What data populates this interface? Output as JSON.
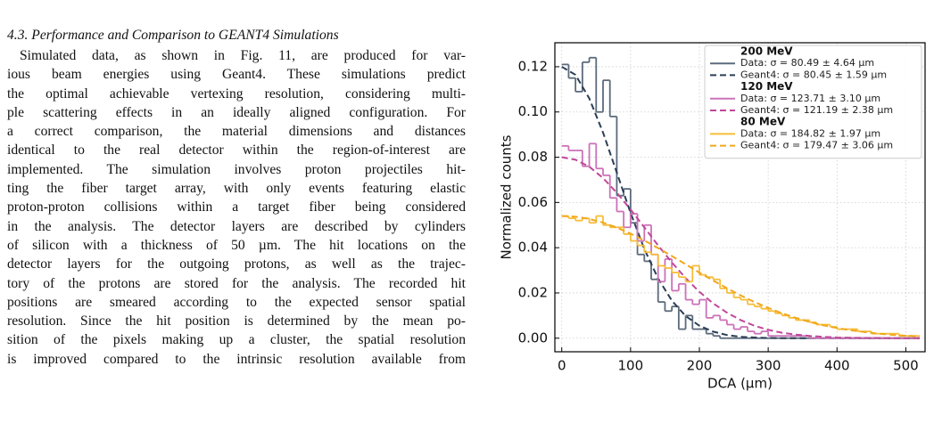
{
  "section": {
    "heading": "4.3. Performance and Comparison to GEANT4 Simulations",
    "lines": [
      "Simulated data, as shown in Fig. 11, are produced for var-",
      "ious beam energies using Geant4. These simulations predict",
      "the optimal achievable vertexing resolution, considering multi-",
      "ple scattering effects in an ideally aligned configuration. For",
      "a correct comparison, the material dimensions and distances",
      "identical to the real detector within the region-of-interest are",
      "implemented. The simulation involves proton projectiles hit-",
      "ting the fiber target array, with only events featuring elastic",
      "proton-proton collisions within a target fiber being considered",
      "in the analysis. The detector layers are described by cylinders",
      "of silicon with a thickness of 50 µm. The hit locations on the",
      "detector layers for the outgoing protons, as well as the trajec-",
      "tory of the protons are stored for the analysis. The recorded hit",
      "positions are smeared according to the expected sensor spatial",
      "resolution. Since the hit position is determined by the mean po-",
      "sition of the pixels making up a cluster, the spatial resolution",
      "is improved compared to the intrinsic resolution available from"
    ]
  },
  "chart_data": {
    "type": "histogram",
    "x_label": "DCA (µm)",
    "y_label": "Normalized counts",
    "xlim": [
      -10,
      528
    ],
    "ylim": [
      -0.006,
      0.1306
    ],
    "xticks": [
      0,
      100,
      200,
      300,
      400,
      500
    ],
    "yticks": [
      {
        "value": 0,
        "label": "0.00"
      },
      {
        "value": 0.02,
        "label": "0.02"
      },
      {
        "value": 0.04,
        "label": "0.04"
      },
      {
        "value": 0.06,
        "label": "0.06"
      },
      {
        "value": 0.08,
        "label": "0.08"
      },
      {
        "value": 0.1,
        "label": "0.10"
      },
      {
        "value": 0.12,
        "label": "0.12"
      }
    ],
    "grid": true,
    "legend": "upper right",
    "bins": [
      0,
      10,
      20,
      30,
      40,
      50,
      60,
      70,
      80,
      90,
      100,
      110,
      120,
      130,
      140,
      150,
      160,
      170,
      180,
      190,
      200,
      210,
      220,
      230,
      240,
      250,
      260,
      270,
      280,
      290,
      300,
      310,
      320,
      330,
      340,
      350,
      360,
      370,
      380,
      390,
      400,
      410,
      420,
      430,
      440,
      450,
      460,
      470,
      480,
      490,
      500,
      510,
      520
    ],
    "curve_x": [
      0,
      20,
      40,
      60,
      80,
      100,
      120,
      140,
      160,
      180,
      200,
      220,
      240,
      260,
      280,
      300,
      320,
      340,
      360,
      380,
      400,
      420,
      440,
      460,
      480,
      500,
      520
    ],
    "groups": [
      {
        "title": "200 MeV",
        "series": [
          {
            "name": "Data: σ = 80.49 ± 4.64 µm",
            "style": "step",
            "color": "#5b6a7b",
            "values": [
              0.121,
              0.115,
              0.109,
              0.122,
              0.124,
              0.1,
              0.114,
              0.098,
              0.063,
              0.066,
              0.051,
              0.037,
              0.034,
              0.026,
              0.016,
              0.012,
              0.014,
              0.004,
              0.01,
              0.004,
              0.004,
              0.002,
              0.001,
              0,
              0,
              0,
              0,
              0,
              0,
              0,
              0,
              0,
              0,
              0,
              0,
              0,
              0,
              0,
              0,
              0,
              0,
              0,
              0,
              0,
              0,
              0,
              0,
              0,
              0,
              0,
              0,
              0
            ]
          },
          {
            "name": "Geant4: σ = 80.45 ± 1.59 µm",
            "style": "dashed",
            "color": "#2b3e55",
            "values": [
              0.12,
              0.1164,
              0.106,
              0.0909,
              0.0732,
              0.0554,
              0.0394,
              0.0264,
              0.0166,
              0.0098,
              0.0055,
              0.0029,
              0.0014,
              0.0006,
              0.0003,
              0.0001,
              0,
              0,
              0,
              0,
              0,
              0,
              0,
              0,
              0,
              0,
              0
            ]
          }
        ]
      },
      {
        "title": "120 MeV",
        "series": [
          {
            "name": "Data: σ = 123.71 ± 3.10 µm",
            "style": "step",
            "color": "#cc72b8",
            "values": [
              0.085,
              0.083,
              0.083,
              0.076,
              0.086,
              0.075,
              0.072,
              0.062,
              0.056,
              0.049,
              0.055,
              0.043,
              0.05,
              0.037,
              0.025,
              0.035,
              0.021,
              0.024,
              0.017,
              0.015,
              0.017,
              0.009,
              0.01,
              0.008,
              0.006,
              0.004,
              0.005,
              0.003,
              0.002,
              0.003,
              0.001,
              0.001,
              0.001,
              0.001,
              0.001,
              0.001,
              0,
              0,
              0,
              0,
              0,
              0,
              0,
              0,
              0,
              0,
              0,
              0,
              0,
              0,
              0,
              0
            ]
          },
          {
            "name": "Geant4: σ = 121.19 ± 2.38 µm",
            "style": "dashed",
            "color": "#c0479a",
            "values": [
              0.08,
              0.0789,
              0.0758,
              0.0708,
              0.0643,
              0.0569,
              0.049,
              0.041,
              0.0335,
              0.0266,
              0.0205,
              0.0154,
              0.0113,
              0.008,
              0.0055,
              0.0037,
              0.0024,
              0.0016,
              0.001,
              0.0006,
              0.0003,
              0.0002,
              0.0001,
              0.0001,
              0,
              0,
              0
            ]
          }
        ]
      },
      {
        "title": "80 MeV",
        "series": [
          {
            "name": "Data: σ = 184.82 ± 1.97 µm",
            "style": "step",
            "color": "#f7bd3a",
            "values": [
              0.054,
              0.053,
              0.052,
              0.053,
              0.051,
              0.054,
              0.05,
              0.049,
              0.049,
              0.046,
              0.043,
              0.041,
              0.038,
              0.037,
              0.032,
              0.031,
              0.029,
              0.027,
              0.025,
              0.032,
              0.028,
              0.027,
              0.026,
              0.022,
              0.02,
              0.018,
              0.017,
              0.015,
              0.014,
              0.013,
              0.012,
              0.011,
              0.01,
              0.009,
              0.008,
              0.008,
              0.007,
              0.006,
              0.006,
              0.005,
              0.004,
              0.004,
              0.004,
              0.003,
              0.003,
              0.002,
              0.002,
              0.002,
              0.002,
              0.001,
              0.001,
              0.001
            ]
          },
          {
            "name": "Geant4: σ = 179.47 ± 3.06 µm",
            "style": "dashed",
            "color": "#f0a81c",
            "values": [
              0.054,
              0.0537,
              0.0527,
              0.0511,
              0.0489,
              0.0462,
              0.0432,
              0.0398,
              0.0363,
              0.0327,
              0.029,
              0.0255,
              0.0221,
              0.0189,
              0.016,
              0.0134,
              0.011,
              0.009,
              0.0072,
              0.0057,
              0.0045,
              0.0035,
              0.0027,
              0.002,
              0.0015,
              0.0011,
              0.0008
            ]
          }
        ]
      }
    ]
  }
}
